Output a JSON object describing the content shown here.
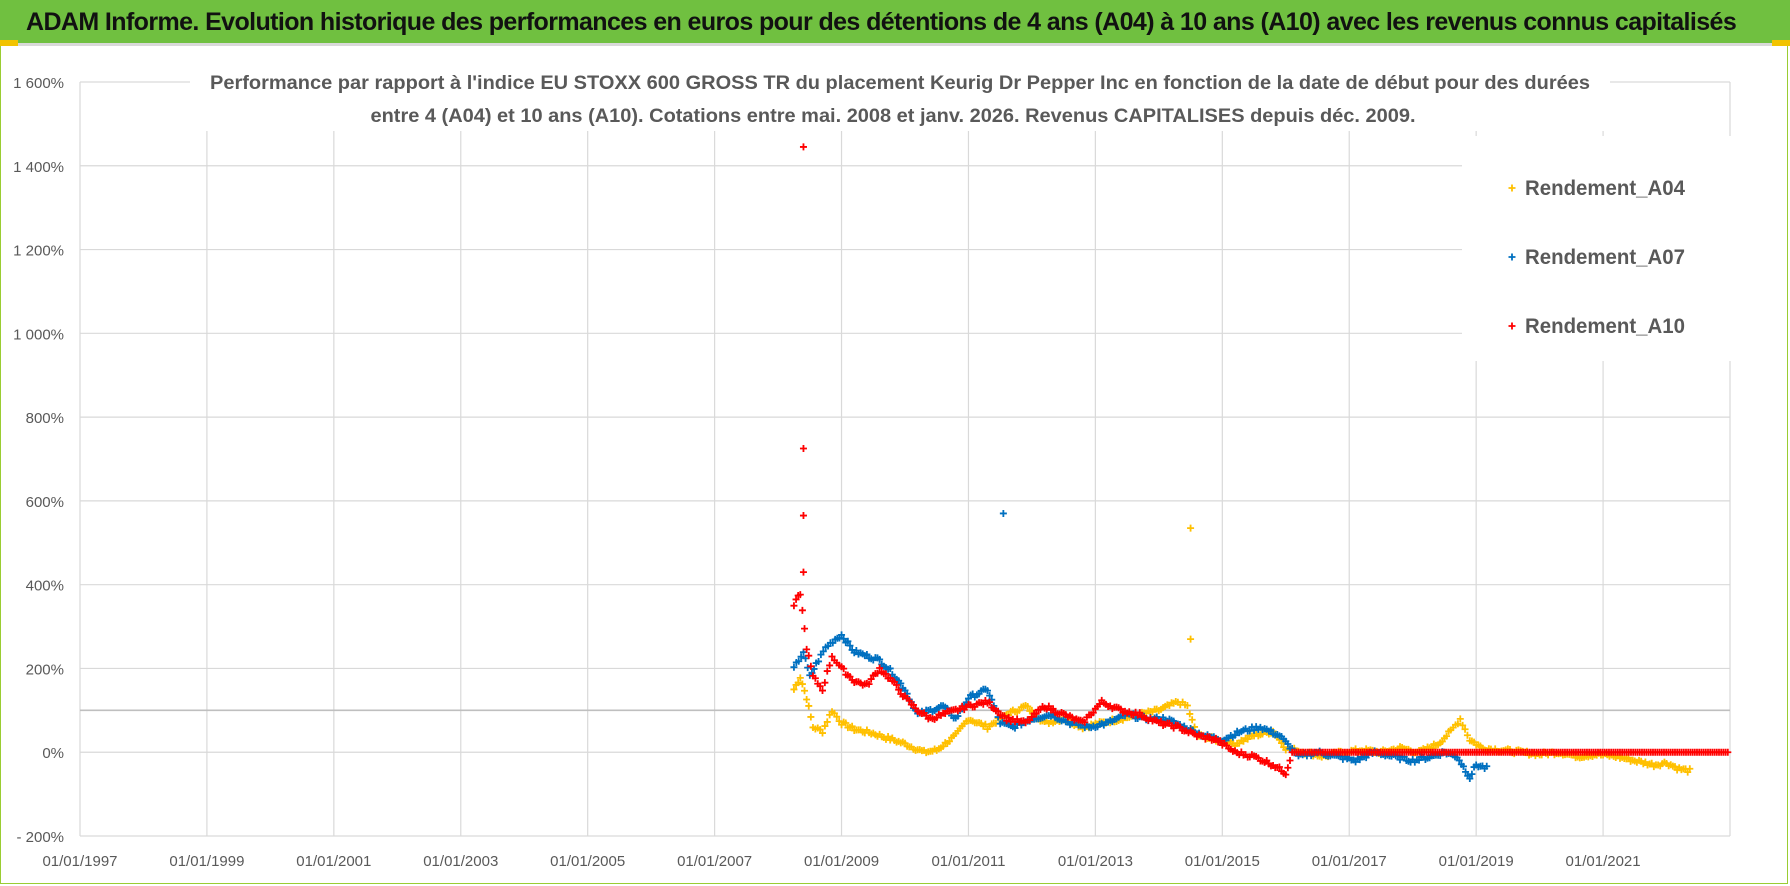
{
  "header": {
    "title": "ADAM Informe. Evolution historique des performances en euros pour des détentions de 4 ans (A04) à 10 ans (A10) avec les revenus connus capitalisés"
  },
  "chart_data": {
    "type": "scatter",
    "title_line1": "Performance par rapport à l'indice EU STOXX 600 GROSS TR  du placement Keurig Dr Pepper Inc en fonction de la date de début pour des durées",
    "title_line2": "entre 4 (A04) et 10 ans (A10). Cotations entre mai. 2008 et janv. 2026. Revenus CAPITALISES depuis déc. 2009.",
    "xlabel": "",
    "ylabel": "",
    "x_range": [
      1997.0,
      2023.0
    ],
    "y_range": [
      -200,
      1600
    ],
    "y_ticks": [
      -200,
      0,
      200,
      400,
      600,
      800,
      1000,
      1200,
      1400,
      1600
    ],
    "y_tick_labels": [
      "- 200%",
      "0%",
      "200%",
      "400%",
      "600%",
      "800%",
      "1 000%",
      "1 200%",
      "1 400%",
      "1 600%"
    ],
    "x_ticks": [
      1997,
      1999,
      2001,
      2003,
      2005,
      2007,
      2009,
      2011,
      2013,
      2015,
      2017,
      2019,
      2021
    ],
    "x_tick_labels": [
      "01/01/1997",
      "01/01/1999",
      "01/01/2001",
      "01/01/2003",
      "01/01/2005",
      "01/01/2007",
      "01/01/2009",
      "01/01/2011",
      "01/01/2013",
      "01/01/2015",
      "01/01/2017",
      "01/01/2019",
      "01/01/2021"
    ],
    "reference_line_y": 100,
    "legend_position": "top-right",
    "series": [
      {
        "name": "Rendement_A04",
        "color": "#ffc000",
        "x": [
          2008.25,
          2008.35,
          2008.45,
          2008.55,
          2008.7,
          2008.85,
          2009.0,
          2009.2,
          2009.5,
          2009.8,
          2010.0,
          2010.3,
          2010.5,
          2010.8,
          2011.0,
          2011.3,
          2011.6,
          2011.9,
          2012.2,
          2012.5,
          2012.8,
          2013.1,
          2013.4,
          2013.7,
          2014.0,
          2014.3,
          2014.45,
          2014.6,
          2014.9,
          2015.2,
          2015.5,
          2015.8,
          2016.0,
          2016.3,
          2016.6,
          2016.9,
          2017.2,
          2017.5,
          2017.8,
          2018.1,
          2018.4,
          2018.6,
          2018.75,
          2018.9,
          2019.1,
          2019.4,
          2019.7,
          2020.0,
          2020.3,
          2020.6,
          2020.9,
          2021.2,
          2021.5,
          2021.8,
          2022.0,
          2022.2,
          2022.4
        ],
        "values": [
          150,
          180,
          130,
          60,
          50,
          100,
          70,
          55,
          45,
          30,
          20,
          0,
          5,
          40,
          80,
          60,
          90,
          110,
          70,
          80,
          60,
          70,
          80,
          90,
          100,
          120,
          110,
          40,
          30,
          20,
          40,
          50,
          10,
          0,
          -10,
          0,
          5,
          0,
          10,
          0,
          20,
          50,
          80,
          30,
          10,
          5,
          0,
          -5,
          0,
          -10,
          -5,
          -10,
          -20,
          -30,
          -25,
          -40,
          -45
        ],
        "outliers": [
          [
            2014.5,
            535
          ],
          [
            2014.5,
            270
          ]
        ]
      },
      {
        "name": "Rendement_A07",
        "color": "#0070c0",
        "x": [
          2008.25,
          2008.4,
          2008.5,
          2008.6,
          2008.75,
          2008.9,
          2009.0,
          2009.2,
          2009.4,
          2009.6,
          2009.8,
          2010.0,
          2010.2,
          2010.4,
          2010.6,
          2010.8,
          2011.0,
          2011.3,
          2011.5,
          2011.7,
          2012.0,
          2012.3,
          2012.6,
          2012.9,
          2013.2,
          2013.5,
          2013.8,
          2014.1,
          2014.4,
          2014.7,
          2015.0,
          2015.3,
          2015.6,
          2015.9,
          2016.2,
          2016.5,
          2016.8,
          2017.1,
          2017.4,
          2017.7,
          2018.0,
          2018.3,
          2018.5,
          2018.7,
          2018.9,
          2019.0,
          2019.2
        ],
        "values": [
          200,
          240,
          180,
          210,
          250,
          270,
          280,
          240,
          230,
          220,
          190,
          150,
          90,
          100,
          110,
          80,
          130,
          150,
          70,
          60,
          80,
          90,
          70,
          60,
          70,
          90,
          80,
          80,
          60,
          40,
          30,
          50,
          60,
          40,
          -10,
          0,
          -10,
          -20,
          0,
          -10,
          -20,
          -10,
          0,
          -10,
          -60,
          -30,
          -40
        ],
        "outliers": [
          [
            2011.55,
            570
          ]
        ]
      },
      {
        "name": "Rendement_A10",
        "color": "#ff0000",
        "x": [
          2008.25,
          2008.35,
          2008.45,
          2008.55,
          2008.7,
          2008.85,
          2009.0,
          2009.2,
          2009.4,
          2009.6,
          2009.8,
          2010.0,
          2010.2,
          2010.4,
          2010.6,
          2010.8,
          2011.0,
          2011.3,
          2011.6,
          2011.9,
          2012.2,
          2012.5,
          2012.8,
          2013.1,
          2013.4,
          2013.7,
          2014.0,
          2014.3,
          2014.6,
          2014.9,
          2015.2,
          2015.5,
          2015.8,
          2016.0,
          2016.1,
          2023.0
        ],
        "values": [
          350,
          380,
          250,
          180,
          150,
          230,
          200,
          170,
          160,
          200,
          170,
          130,
          100,
          80,
          90,
          100,
          110,
          120,
          80,
          70,
          110,
          90,
          70,
          120,
          100,
          90,
          70,
          60,
          40,
          30,
          0,
          -10,
          -30,
          -50,
          0,
          0
        ],
        "outliers": [
          [
            2008.4,
            1445
          ],
          [
            2008.4,
            725
          ],
          [
            2008.4,
            565
          ],
          [
            2008.4,
            430
          ]
        ]
      }
    ]
  }
}
